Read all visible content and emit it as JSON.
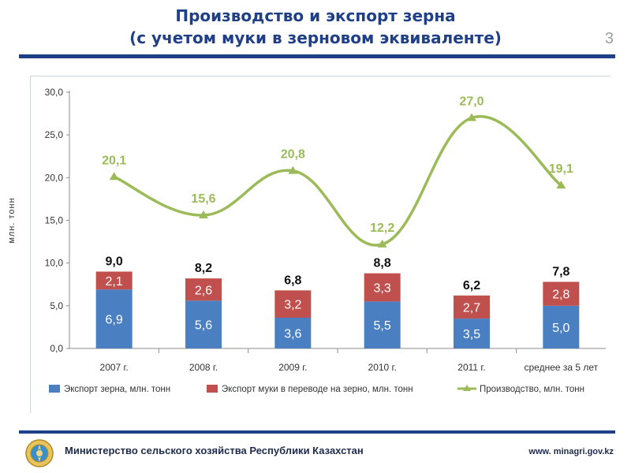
{
  "slide": {
    "title_line1": "Производство и экспорт зерна",
    "title_line2": "(с учетом муки в зерновом эквиваленте)",
    "page_number": "3"
  },
  "footer": {
    "organization": "Министерство сельского хозяйства Республики Казахстан",
    "url": "www. minagri.gov.kz"
  },
  "colors": {
    "title": "#1f3f86",
    "rule": "#1f3f86",
    "export_grain": "#4a7fc1",
    "export_flour": "#c0504d",
    "production": "#9bbb59",
    "axis_text": "#333333"
  },
  "chart_data": {
    "type": "bar",
    "stacked": true,
    "categories": [
      "2007 г.",
      "2008 г.",
      "2009 г.",
      "2010 г.",
      "2011 г.",
      "среднее за 5 лет"
    ],
    "ylabel": "млн. тонн",
    "ylim": [
      0,
      30
    ],
    "yticks": [
      "0,0",
      "5,0",
      "10,0",
      "15,0",
      "20,0",
      "25,0",
      "30,0"
    ],
    "grid": false,
    "legend_position": "bottom",
    "bar_totals": [
      "9,0",
      "8,2",
      "6,8",
      "8,8",
      "6,2",
      "7,8"
    ],
    "series": [
      {
        "name": "Экспорт зерна, млн. тонн",
        "kind": "bar",
        "values": [
          6.9,
          5.6,
          3.6,
          5.5,
          3.5,
          5.0
        ],
        "labels": [
          "6,9",
          "5,6",
          "3,6",
          "5,5",
          "3,5",
          "5,0"
        ]
      },
      {
        "name": "Экспорт муки в переводе на зерно, млн. тонн",
        "kind": "bar",
        "values": [
          2.1,
          2.6,
          3.2,
          3.3,
          2.7,
          2.8
        ],
        "labels": [
          "2,1",
          "2,6",
          "3,2",
          "3,3",
          "2,7",
          "2,8"
        ]
      },
      {
        "name": "Производство, млн. тонн",
        "kind": "line",
        "values": [
          20.1,
          15.6,
          20.8,
          12.2,
          27.0,
          19.1
        ],
        "labels": [
          "20,1",
          "15,6",
          "20,8",
          "12,2",
          "27,0",
          "19,1"
        ]
      }
    ]
  }
}
